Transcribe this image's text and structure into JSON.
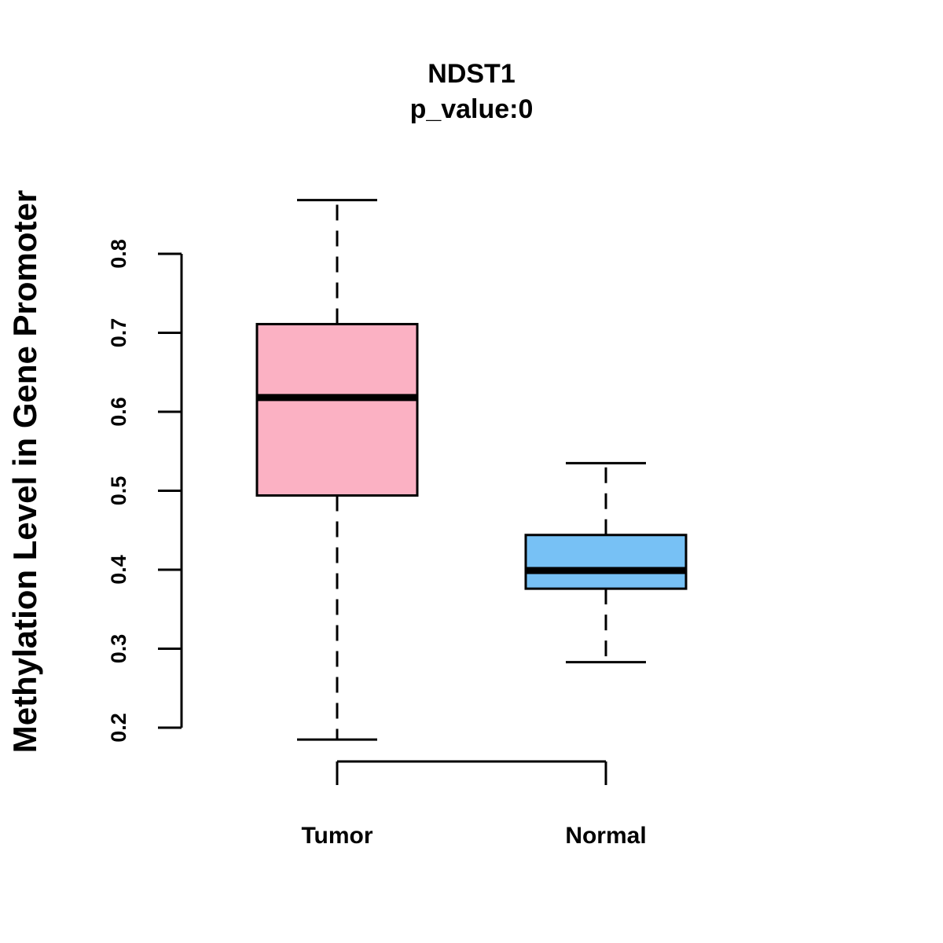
{
  "chart_data": {
    "type": "boxplot",
    "title": "NDST1",
    "subtitle": "p_value:0",
    "xlabel": "",
    "ylabel": "Methylation Level in Gene Promoter",
    "ylim": [
      0.2,
      0.8
    ],
    "yticks": [
      "0.2",
      "0.3",
      "0.4",
      "0.5",
      "0.6",
      "0.7",
      "0.8"
    ],
    "grid": false,
    "categories": [
      "Tumor",
      "Normal"
    ],
    "series": [
      {
        "name": "Tumor",
        "color": "#FBB1C3",
        "min": 0.185,
        "q1": 0.494,
        "median": 0.618,
        "q3": 0.711,
        "max": 0.868
      },
      {
        "name": "Normal",
        "color": "#77C1F5",
        "min": 0.283,
        "q1": 0.376,
        "median": 0.399,
        "q3": 0.444,
        "max": 0.535
      }
    ]
  }
}
